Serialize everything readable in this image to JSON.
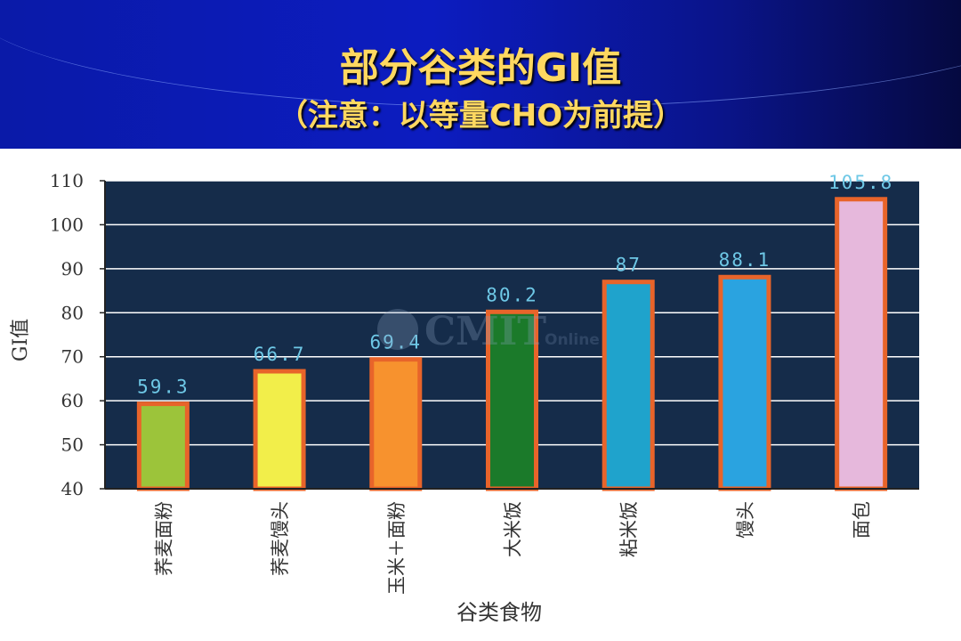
{
  "slide": {
    "title_line1": "部分谷类的GI值",
    "title_line2": "（注意：以等量CHO为前提）",
    "watermark": "CMIT",
    "watermark_sub": "Online"
  },
  "chart_data": {
    "type": "bar",
    "categories": [
      "荞麦面粉",
      "荞麦馒头",
      "玉米＋面粉",
      "大米饭",
      "粘米饭",
      "馒头",
      "面包"
    ],
    "values": [
      59.3,
      66.7,
      69.4,
      80.2,
      87,
      88.1,
      105.8
    ],
    "value_labels": [
      "59.3",
      "66.7",
      "69.4",
      "80.2",
      "87",
      "88.1",
      "105.8"
    ],
    "bar_colors": [
      "#9cc43a",
      "#f2ee4a",
      "#f7922e",
      "#1b7a2a",
      "#1fa3cc",
      "#2aa3e0",
      "#e6b8dc"
    ],
    "bar_border_color": "#e8642a",
    "plot_background": "#152c4a",
    "label_color": "#6ec8e6",
    "xlabel": "谷类食物",
    "ylabel": "GI值",
    "ylim": [
      40,
      110
    ],
    "yticks": [
      40,
      50,
      60,
      70,
      80,
      90,
      100,
      110
    ],
    "grid": true,
    "legend": "none"
  }
}
